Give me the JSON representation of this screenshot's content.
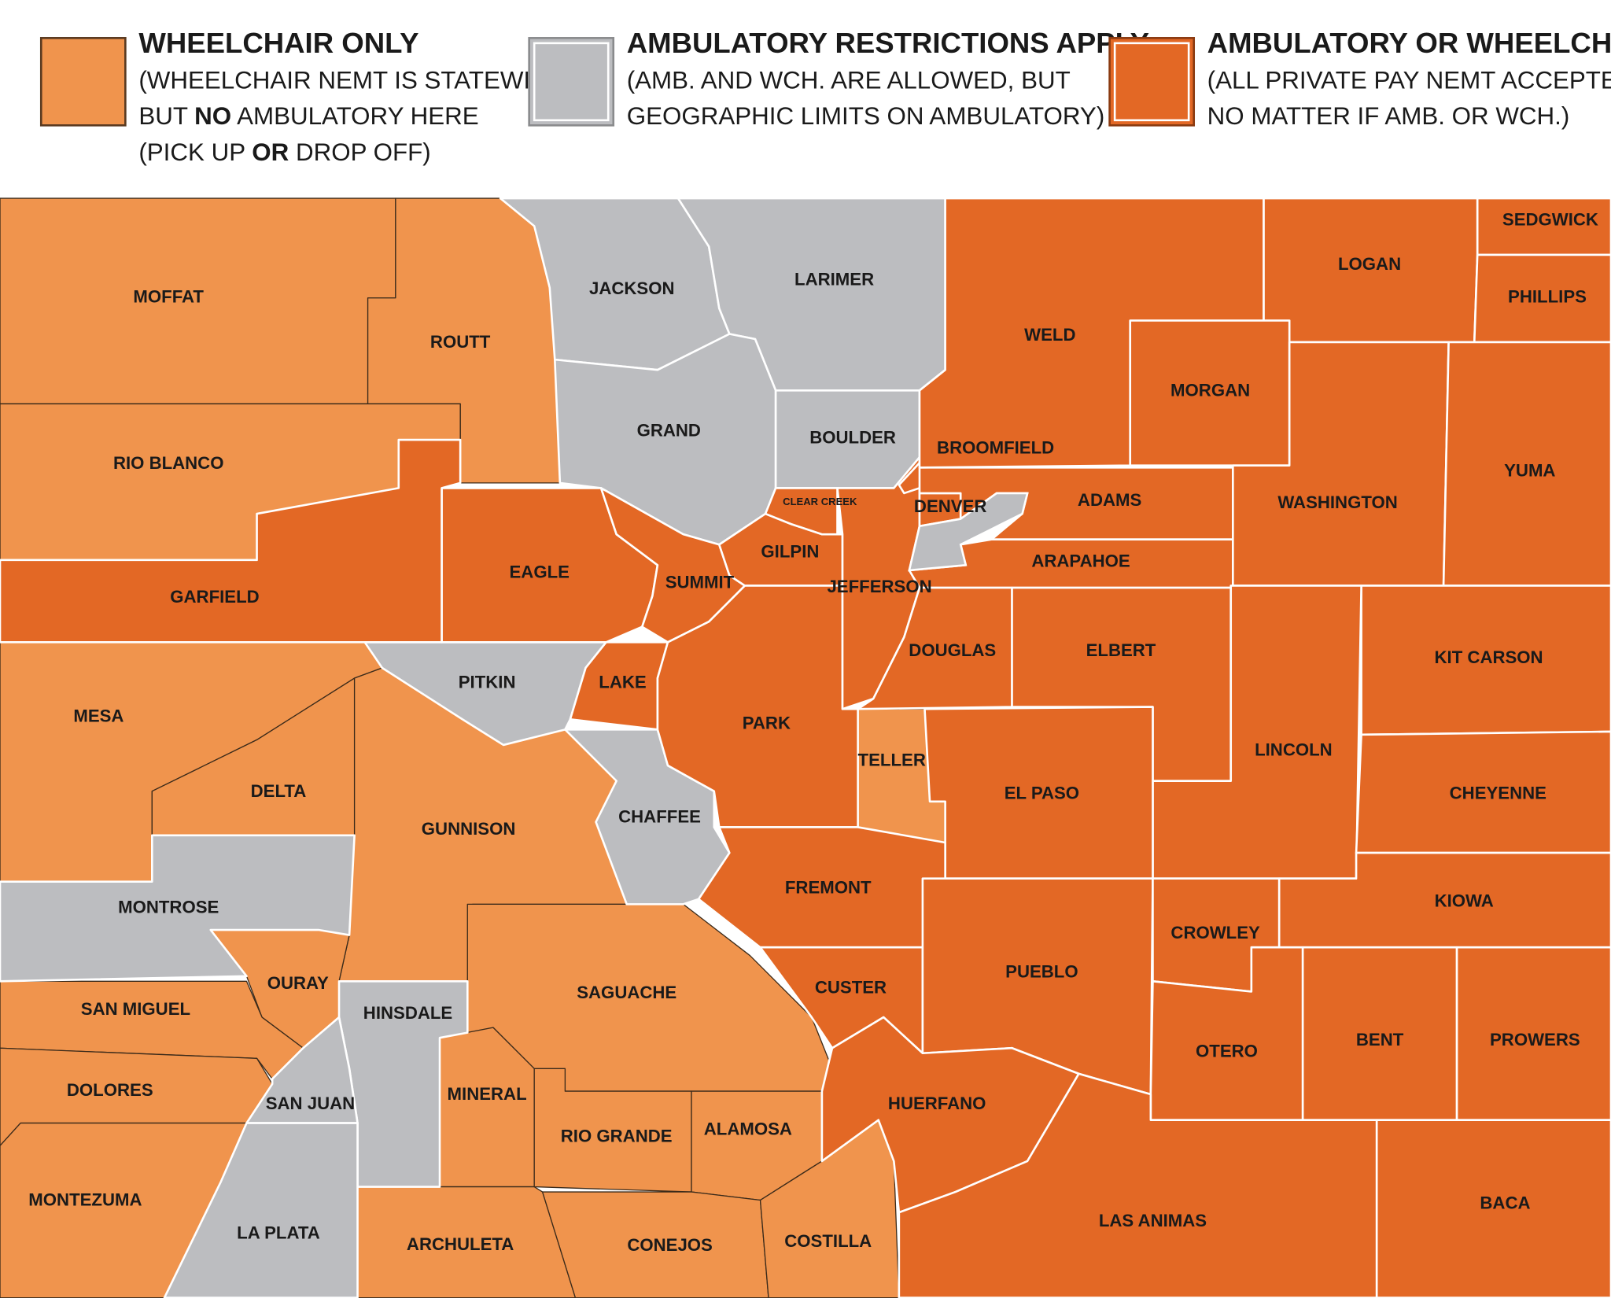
{
  "legend": [
    {
      "title": "WHEELCHAIR ONLY",
      "color": "#f0944d",
      "lines": [
        [
          {
            "text": "(WHEELCHAIR NEMT IS STATEWIDE,"
          }
        ],
        [
          {
            "text": "BUT "
          },
          {
            "text": "NO",
            "bold": true
          },
          {
            "text": " AMBULATORY HERE"
          }
        ],
        [
          {
            "text": "(PICK UP "
          },
          {
            "text": "OR",
            "bold": true
          },
          {
            "text": " DROP OFF)"
          }
        ]
      ],
      "counties": [
        "MOFFAT",
        "ROUTT",
        "RIO BLANCO",
        "MESA",
        "DELTA",
        "GUNNISON",
        "OURAY",
        "SAN MIGUEL",
        "DOLORES",
        "MONTEZUMA",
        "SAGUACHE",
        "MINERAL",
        "RIO GRANDE",
        "ALAMOSA",
        "ARCHULETA",
        "CONEJOS",
        "COSTILLA",
        "TELLER"
      ]
    },
    {
      "title": "AMBULATORY RESTRICTIONS APPLY",
      "color": "#bcbdc0",
      "lines": [
        [
          {
            "text": "(AMB. AND WCH. ARE ALLOWED, BUT"
          }
        ],
        [
          {
            "text": "GEOGRAPHIC LIMITS ON AMBULATORY)"
          }
        ]
      ],
      "counties": [
        "JACKSON",
        "LARIMER",
        "GRAND",
        "BOULDER",
        "PITKIN",
        "CHAFFEE",
        "MONTROSE",
        "HINSDALE",
        "SAN JUAN",
        "LA PLATA"
      ]
    },
    {
      "title": "AMBULATORY OR WHEELCHAIR",
      "color": "#e36825",
      "lines": [
        [
          {
            "text": "(ALL PRIVATE PAY NEMT ACCEPTED,"
          }
        ],
        [
          {
            "text": "NO MATTER IF AMB. OR WCH.)"
          }
        ]
      ],
      "counties": [
        "GARFIELD",
        "EAGLE",
        "SUMMIT",
        "GILPIN",
        "CLEAR CREEK",
        "LAKE",
        "PARK",
        "JEFFERSON",
        "BROOMFIELD",
        "DENVER",
        "ADAMS",
        "ARAPAHOE",
        "DOUGLAS",
        "ELBERT",
        "WELD",
        "LOGAN",
        "SEDGWICK",
        "PHILLIPS",
        "MORGAN",
        "WASHINGTON",
        "YUMA",
        "KIT CARSON",
        "LINCOLN",
        "CHEYENNE",
        "KIOWA",
        "EL PASO",
        "FREMONT",
        "CUSTER",
        "PUEBLO",
        "CROWLEY",
        "OTERO",
        "BENT",
        "PROWERS",
        "HUERFANO",
        "LAS ANIMAS",
        "BACA"
      ]
    }
  ]
}
